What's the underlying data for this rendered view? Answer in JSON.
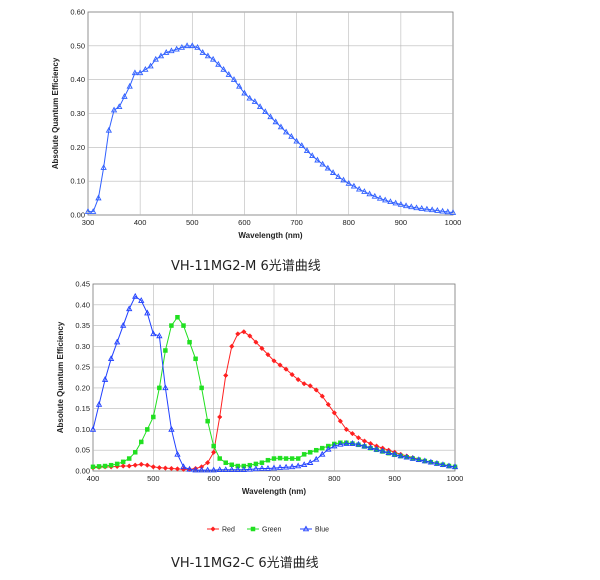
{
  "captions": {
    "mono": "VH-11MG2-M 6光谱曲线",
    "color": "VH-11MG2-C 6光谱曲线"
  },
  "chart_data": [
    {
      "type": "line",
      "xlabel": "Wavelength (nm)",
      "ylabel": "Absolute Quantum Efficiency",
      "xlim": [
        300,
        1000
      ],
      "ylim": [
        0,
        0.6
      ],
      "xticks": [
        "300",
        "400",
        "500",
        "600",
        "700",
        "800",
        "900",
        "1000"
      ],
      "yticks": [
        "0.00",
        "0.10",
        "0.20",
        "0.30",
        "0.40",
        "0.50",
        "0.60"
      ],
      "grid": true,
      "series": [
        {
          "color": "#3060ff",
          "marker": "triangle",
          "x": [
            300,
            310,
            320,
            330,
            340,
            350,
            360,
            370,
            380,
            390,
            400,
            410,
            420,
            430,
            440,
            450,
            460,
            470,
            480,
            490,
            500,
            510,
            520,
            530,
            540,
            550,
            560,
            570,
            580,
            590,
            600,
            610,
            620,
            630,
            640,
            650,
            660,
            670,
            680,
            690,
            700,
            710,
            720,
            730,
            740,
            750,
            760,
            770,
            780,
            790,
            800,
            810,
            820,
            830,
            840,
            850,
            860,
            870,
            880,
            890,
            900,
            910,
            920,
            930,
            940,
            950,
            960,
            970,
            980,
            990,
            1000
          ],
          "y": [
            0.01,
            0.01,
            0.05,
            0.14,
            0.25,
            0.31,
            0.32,
            0.35,
            0.38,
            0.42,
            0.42,
            0.43,
            0.44,
            0.46,
            0.47,
            0.48,
            0.485,
            0.49,
            0.495,
            0.5,
            0.5,
            0.495,
            0.48,
            0.47,
            0.46,
            0.445,
            0.43,
            0.415,
            0.4,
            0.38,
            0.36,
            0.345,
            0.335,
            0.32,
            0.305,
            0.29,
            0.275,
            0.26,
            0.245,
            0.232,
            0.218,
            0.205,
            0.19,
            0.175,
            0.162,
            0.15,
            0.138,
            0.125,
            0.113,
            0.103,
            0.093,
            0.085,
            0.076,
            0.069,
            0.062,
            0.055,
            0.049,
            0.044,
            0.039,
            0.035,
            0.031,
            0.027,
            0.024,
            0.021,
            0.019,
            0.017,
            0.015,
            0.013,
            0.011,
            0.009,
            0.007
          ]
        }
      ]
    },
    {
      "type": "line",
      "xlabel": "Wavelength (nm)",
      "ylabel": "Absolute Quantum Efficiency",
      "xlim": [
        400,
        1000
      ],
      "ylim": [
        0,
        0.45
      ],
      "xticks": [
        "400",
        "500",
        "600",
        "700",
        "800",
        "900",
        "1000"
      ],
      "yticks": [
        "0.00",
        "0.05",
        "0.10",
        "0.15",
        "0.20",
        "0.25",
        "0.30",
        "0.35",
        "0.40",
        "0.45"
      ],
      "grid": true,
      "legend_position": "bottom",
      "series": [
        {
          "name": "Red",
          "color": "#ff2020",
          "marker": "diamond",
          "x": [
            400,
            410,
            420,
            430,
            440,
            450,
            460,
            470,
            480,
            490,
            500,
            510,
            520,
            530,
            540,
            550,
            560,
            570,
            580,
            590,
            600,
            610,
            620,
            630,
            640,
            650,
            660,
            670,
            680,
            690,
            700,
            710,
            720,
            730,
            740,
            750,
            760,
            770,
            780,
            790,
            800,
            810,
            820,
            830,
            840,
            850,
            860,
            870,
            880,
            890,
            900,
            910,
            920,
            930,
            940,
            950,
            960,
            970,
            980,
            990,
            1000
          ],
          "y": [
            0.008,
            0.009,
            0.01,
            0.01,
            0.011,
            0.012,
            0.012,
            0.014,
            0.016,
            0.014,
            0.01,
            0.008,
            0.007,
            0.006,
            0.005,
            0.004,
            0.004,
            0.006,
            0.01,
            0.02,
            0.045,
            0.13,
            0.23,
            0.3,
            0.33,
            0.335,
            0.325,
            0.31,
            0.295,
            0.28,
            0.265,
            0.255,
            0.245,
            0.232,
            0.22,
            0.21,
            0.205,
            0.195,
            0.18,
            0.16,
            0.14,
            0.12,
            0.1,
            0.09,
            0.08,
            0.072,
            0.066,
            0.06,
            0.055,
            0.05,
            0.045,
            0.04,
            0.036,
            0.032,
            0.028,
            0.024,
            0.021,
            0.018,
            0.015,
            0.012,
            0.01
          ]
        },
        {
          "name": "Green",
          "color": "#20e020",
          "marker": "square",
          "x": [
            400,
            410,
            420,
            430,
            440,
            450,
            460,
            470,
            480,
            490,
            500,
            510,
            520,
            530,
            540,
            550,
            560,
            570,
            580,
            590,
            600,
            610,
            620,
            630,
            640,
            650,
            660,
            670,
            680,
            690,
            700,
            710,
            720,
            730,
            740,
            750,
            760,
            770,
            780,
            790,
            800,
            810,
            820,
            830,
            840,
            850,
            860,
            870,
            880,
            890,
            900,
            910,
            920,
            930,
            940,
            950,
            960,
            970,
            980,
            990,
            1000
          ],
          "y": [
            0.01,
            0.011,
            0.012,
            0.014,
            0.017,
            0.022,
            0.03,
            0.045,
            0.07,
            0.1,
            0.13,
            0.2,
            0.29,
            0.35,
            0.37,
            0.35,
            0.31,
            0.27,
            0.2,
            0.12,
            0.06,
            0.03,
            0.02,
            0.015,
            0.012,
            0.012,
            0.014,
            0.017,
            0.02,
            0.026,
            0.03,
            0.031,
            0.03,
            0.03,
            0.03,
            0.04,
            0.045,
            0.05,
            0.055,
            0.06,
            0.065,
            0.068,
            0.068,
            0.066,
            0.063,
            0.059,
            0.055,
            0.051,
            0.047,
            0.043,
            0.039,
            0.036,
            0.033,
            0.03,
            0.027,
            0.024,
            0.021,
            0.018,
            0.015,
            0.012,
            0.01
          ]
        },
        {
          "name": "Blue",
          "color": "#2040ff",
          "marker": "triangle",
          "x": [
            400,
            410,
            420,
            430,
            440,
            450,
            460,
            470,
            480,
            490,
            500,
            510,
            520,
            530,
            540,
            550,
            560,
            570,
            580,
            590,
            600,
            610,
            620,
            630,
            640,
            650,
            660,
            670,
            680,
            690,
            700,
            710,
            720,
            730,
            740,
            750,
            760,
            770,
            780,
            790,
            800,
            810,
            820,
            830,
            840,
            850,
            860,
            870,
            880,
            890,
            900,
            910,
            920,
            930,
            940,
            950,
            960,
            970,
            980,
            990,
            1000
          ],
          "y": [
            0.1,
            0.16,
            0.22,
            0.27,
            0.31,
            0.35,
            0.39,
            0.42,
            0.41,
            0.38,
            0.33,
            0.325,
            0.2,
            0.1,
            0.04,
            0.01,
            0.004,
            0.002,
            0.002,
            0.002,
            0.002,
            0.003,
            0.003,
            0.003,
            0.003,
            0.003,
            0.004,
            0.005,
            0.006,
            0.006,
            0.007,
            0.008,
            0.009,
            0.01,
            0.012,
            0.015,
            0.02,
            0.028,
            0.04,
            0.052,
            0.06,
            0.064,
            0.066,
            0.066,
            0.064,
            0.06,
            0.056,
            0.052,
            0.048,
            0.044,
            0.04,
            0.036,
            0.033,
            0.03,
            0.027,
            0.024,
            0.021,
            0.018,
            0.015,
            0.012,
            0.01
          ]
        }
      ]
    }
  ]
}
